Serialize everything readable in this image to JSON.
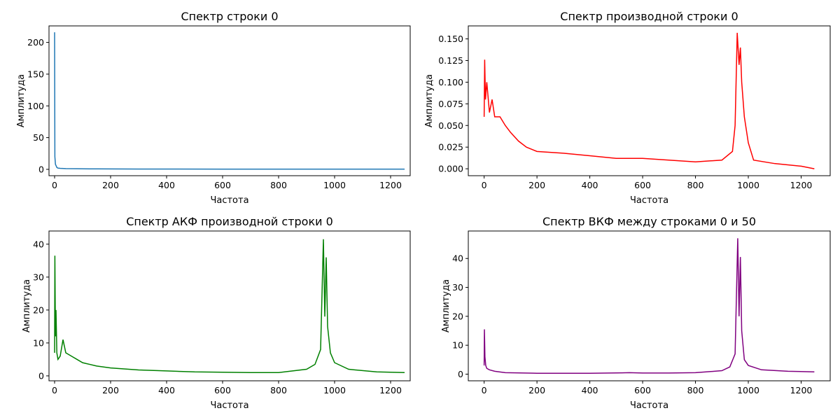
{
  "chart_data": [
    {
      "type": "line",
      "title": "Спектр строки 0",
      "xlabel": "Частота",
      "ylabel": "Амплитуда",
      "xlim": [
        -20,
        1270
      ],
      "ylim": [
        -10,
        226
      ],
      "xticks": [
        0,
        200,
        400,
        600,
        800,
        1000,
        1200
      ],
      "yticks": [
        0,
        50,
        100,
        150,
        200
      ],
      "ytick_labels": [
        "0",
        "50",
        "100",
        "150",
        "200"
      ],
      "color": "#1f77b4",
      "points": [
        [
          0,
          216
        ],
        [
          1,
          20
        ],
        [
          2,
          14
        ],
        [
          3,
          8
        ],
        [
          5,
          6
        ],
        [
          8,
          3
        ],
        [
          12,
          2
        ],
        [
          20,
          1.6
        ],
        [
          40,
          1.2
        ],
        [
          80,
          1.0
        ],
        [
          150,
          0.7
        ],
        [
          300,
          0.5
        ],
        [
          600,
          0.4
        ],
        [
          1000,
          0.3
        ],
        [
          1250,
          0.3
        ]
      ]
    },
    {
      "type": "line",
      "title": "Спектр производной строки 0",
      "xlabel": "Частота",
      "ylabel": "Амплитуда",
      "xlim": [
        -60,
        1310
      ],
      "ylim": [
        -0.008,
        0.165
      ],
      "xticks": [
        0,
        200,
        400,
        600,
        800,
        1000,
        1200
      ],
      "yticks": [
        0,
        0.025,
        0.05,
        0.075,
        0.1,
        0.125,
        0.15
      ],
      "ytick_labels": [
        "0.000",
        "0.025",
        "0.050",
        "0.075",
        "0.100",
        "0.125",
        "0.150"
      ],
      "color": "#ff0000",
      "points": [
        [
          0,
          0.06
        ],
        [
          2,
          0.126
        ],
        [
          5,
          0.08
        ],
        [
          10,
          0.1
        ],
        [
          20,
          0.065
        ],
        [
          30,
          0.08
        ],
        [
          40,
          0.06
        ],
        [
          60,
          0.06
        ],
        [
          80,
          0.05
        ],
        [
          100,
          0.042
        ],
        [
          130,
          0.032
        ],
        [
          160,
          0.025
        ],
        [
          200,
          0.02
        ],
        [
          300,
          0.018
        ],
        [
          400,
          0.015
        ],
        [
          500,
          0.012
        ],
        [
          600,
          0.012
        ],
        [
          700,
          0.01
        ],
        [
          800,
          0.008
        ],
        [
          900,
          0.01
        ],
        [
          940,
          0.02
        ],
        [
          950,
          0.05
        ],
        [
          958,
          0.157
        ],
        [
          965,
          0.12
        ],
        [
          970,
          0.14
        ],
        [
          975,
          0.1
        ],
        [
          985,
          0.06
        ],
        [
          1000,
          0.03
        ],
        [
          1020,
          0.01
        ],
        [
          1100,
          0.006
        ],
        [
          1200,
          0.003
        ],
        [
          1250,
          0.0
        ]
      ]
    },
    {
      "type": "line",
      "title": "Спектр АКФ производной строки 0",
      "xlabel": "Частота",
      "ylabel": "Амплитуда",
      "xlim": [
        -20,
        1270
      ],
      "ylim": [
        -1.5,
        44
      ],
      "xticks": [
        0,
        200,
        400,
        600,
        800,
        1000,
        1200
      ],
      "yticks": [
        0,
        10,
        20,
        30,
        40
      ],
      "ytick_labels": [
        "0",
        "10",
        "20",
        "30",
        "40"
      ],
      "color": "#008000",
      "points": [
        [
          0,
          7
        ],
        [
          1,
          36.5
        ],
        [
          3,
          12
        ],
        [
          5,
          20
        ],
        [
          8,
          7
        ],
        [
          12,
          5
        ],
        [
          20,
          6
        ],
        [
          30,
          11
        ],
        [
          40,
          7
        ],
        [
          60,
          6
        ],
        [
          80,
          5
        ],
        [
          100,
          4
        ],
        [
          150,
          3
        ],
        [
          200,
          2.4
        ],
        [
          300,
          1.8
        ],
        [
          400,
          1.5
        ],
        [
          500,
          1.2
        ],
        [
          600,
          1.1
        ],
        [
          700,
          1.0
        ],
        [
          800,
          1.0
        ],
        [
          900,
          2.0
        ],
        [
          930,
          3.5
        ],
        [
          950,
          8.0
        ],
        [
          960,
          41.5
        ],
        [
          965,
          18
        ],
        [
          970,
          36
        ],
        [
          975,
          15
        ],
        [
          985,
          7
        ],
        [
          1000,
          4
        ],
        [
          1050,
          2
        ],
        [
          1150,
          1.2
        ],
        [
          1250,
          1.0
        ]
      ]
    },
    {
      "type": "line",
      "title": "Спектр ВКФ между строками 0 и 50",
      "xlabel": "Частота",
      "ylabel": "Амплитуда",
      "xlim": [
        -60,
        1310
      ],
      "ylim": [
        -2.3,
        49.5
      ],
      "xticks": [
        0,
        200,
        400,
        600,
        800,
        1000,
        1200
      ],
      "yticks": [
        0,
        10,
        20,
        30,
        40
      ],
      "ytick_labels": [
        "0",
        "10",
        "20",
        "30",
        "40"
      ],
      "color": "#800080",
      "points": [
        [
          0,
          3
        ],
        [
          1,
          15.5
        ],
        [
          3,
          6
        ],
        [
          6,
          3
        ],
        [
          10,
          2
        ],
        [
          20,
          1.5
        ],
        [
          40,
          1
        ],
        [
          80,
          0.5
        ],
        [
          200,
          0.3
        ],
        [
          400,
          0.3
        ],
        [
          550,
          0.5
        ],
        [
          600,
          0.4
        ],
        [
          700,
          0.4
        ],
        [
          800,
          0.5
        ],
        [
          900,
          1.2
        ],
        [
          930,
          2.5
        ],
        [
          950,
          7
        ],
        [
          960,
          47
        ],
        [
          965,
          20
        ],
        [
          970,
          40.5
        ],
        [
          975,
          15
        ],
        [
          985,
          5
        ],
        [
          1000,
          3
        ],
        [
          1050,
          1.5
        ],
        [
          1150,
          1.0
        ],
        [
          1250,
          0.8
        ]
      ]
    }
  ]
}
